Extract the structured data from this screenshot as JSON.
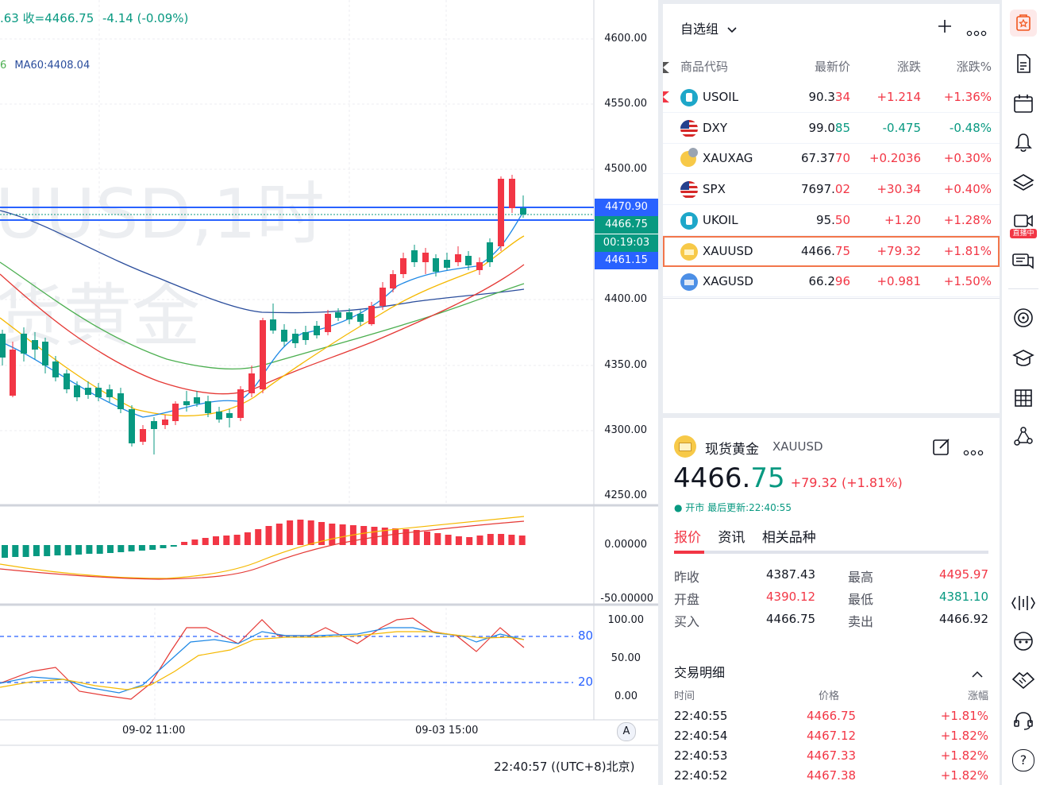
{
  "chart": {
    "header_line1": ".63  收=4466.75  -4.14 (-0.09%)",
    "header_line1_prefix": ".63 收=",
    "header_close": "4466.75",
    "header_change": "-4.14 (-0.09%)",
    "ma_partial": "6",
    "ma60": "MA60:4408.04",
    "watermark_line1": "UUSD,1时",
    "watermark_line2": "货黄金",
    "price_axis": [
      "4600.00",
      "4550.00",
      "4500.00",
      "4400.00",
      "4350.00",
      "4300.00",
      "4250.00"
    ],
    "tag_high": "4470.90",
    "tag_last": "4466.75",
    "tag_timer": "00:19:03",
    "tag_low": "4461.15",
    "macd_axis": [
      "0.00000",
      "-50.00000"
    ],
    "kdj_axis": [
      "100.00",
      "50.00",
      "0.00"
    ],
    "kdj_lines": [
      "80",
      "20"
    ],
    "time_labels": [
      "09-02 11:00",
      "09-03 15:00"
    ],
    "auto_btn": "A",
    "clock": "22:40:57",
    "tz": "(UTC+8)北京)",
    "colors": {
      "up": "#f23645",
      "down": "#089981",
      "blue_line": "#2962ff"
    }
  },
  "watchlist": {
    "title": "自选组",
    "headers": [
      "商品代码",
      "最新价",
      "涨跌",
      "涨跌%"
    ],
    "rows": [
      {
        "symbol": "USOIL",
        "price": "90.334",
        "change": "+1.214",
        "pct": "+1.36%",
        "icon": "oil-icon",
        "dir": "up"
      },
      {
        "symbol": "DXY",
        "price": "99.085",
        "change": "-0.475",
        "pct": "-0.48%",
        "icon": "us-flag-icon",
        "dir": "down"
      },
      {
        "symbol": "XAUXAG",
        "price": "67.3770",
        "change": "+0.2036",
        "pct": "+0.30%",
        "icon": "gold-silver-icon",
        "dir": "up"
      },
      {
        "symbol": "SPX",
        "price": "7697.02",
        "change": "+30.34",
        "pct": "+0.40%",
        "icon": "us-flag-icon",
        "dir": "up"
      },
      {
        "symbol": "UKOIL",
        "price": "95.50",
        "change": "+1.20",
        "pct": "+1.28%",
        "icon": "oil-icon",
        "dir": "up"
      },
      {
        "symbol": "XAUUSD",
        "price": "4466.75",
        "change": "+79.32",
        "pct": "+1.81%",
        "icon": "gold-icon",
        "dir": "up"
      },
      {
        "symbol": "XAGUSD",
        "price": "66.296",
        "change": "+0.981",
        "pct": "+1.50%",
        "icon": "silver-icon",
        "dir": "up"
      }
    ]
  },
  "detail": {
    "name": "现货黄金",
    "symbol": "XAUUSD",
    "price_main": "4466.",
    "price_tail": "75",
    "change": "+79.32 (+1.81%)",
    "status": "● 开市 最后更新:22:40:55",
    "tabs": [
      "报价",
      "资讯",
      "相关品种"
    ],
    "stats": [
      {
        "label": "昨收",
        "value": "4387.43",
        "label2": "最高",
        "value2": "4495.97"
      },
      {
        "label": "开盘",
        "value": "4390.12",
        "label2": "最低",
        "value2": "4381.10"
      },
      {
        "label": "买入",
        "value": "4466.75",
        "label2": "卖出",
        "value2": "4466.92"
      }
    ],
    "trades_title": "交易明细",
    "trades_headers": [
      "时间",
      "价格",
      "涨幅"
    ],
    "trades": [
      {
        "time": "22:40:55",
        "price": "4466.75",
        "pct": "+1.81%"
      },
      {
        "time": "22:40:54",
        "price": "4467.12",
        "pct": "+1.82%"
      },
      {
        "time": "22:40:53",
        "price": "4467.33",
        "pct": "+1.82%"
      },
      {
        "time": "22:40:52",
        "price": "4467.38",
        "pct": "+1.82%"
      }
    ]
  },
  "toolbar": {
    "live_badge": "直播中",
    "icons": [
      "watchlist-icon",
      "news-icon",
      "calendar-icon",
      "alert-icon",
      "layers-icon",
      "live-icon",
      "chat-icon",
      "target-icon",
      "education-icon",
      "grid-icon",
      "network-icon",
      "data-window-icon",
      "face-icon",
      "handshake-icon",
      "support-icon",
      "help-icon"
    ],
    "help": "?"
  }
}
